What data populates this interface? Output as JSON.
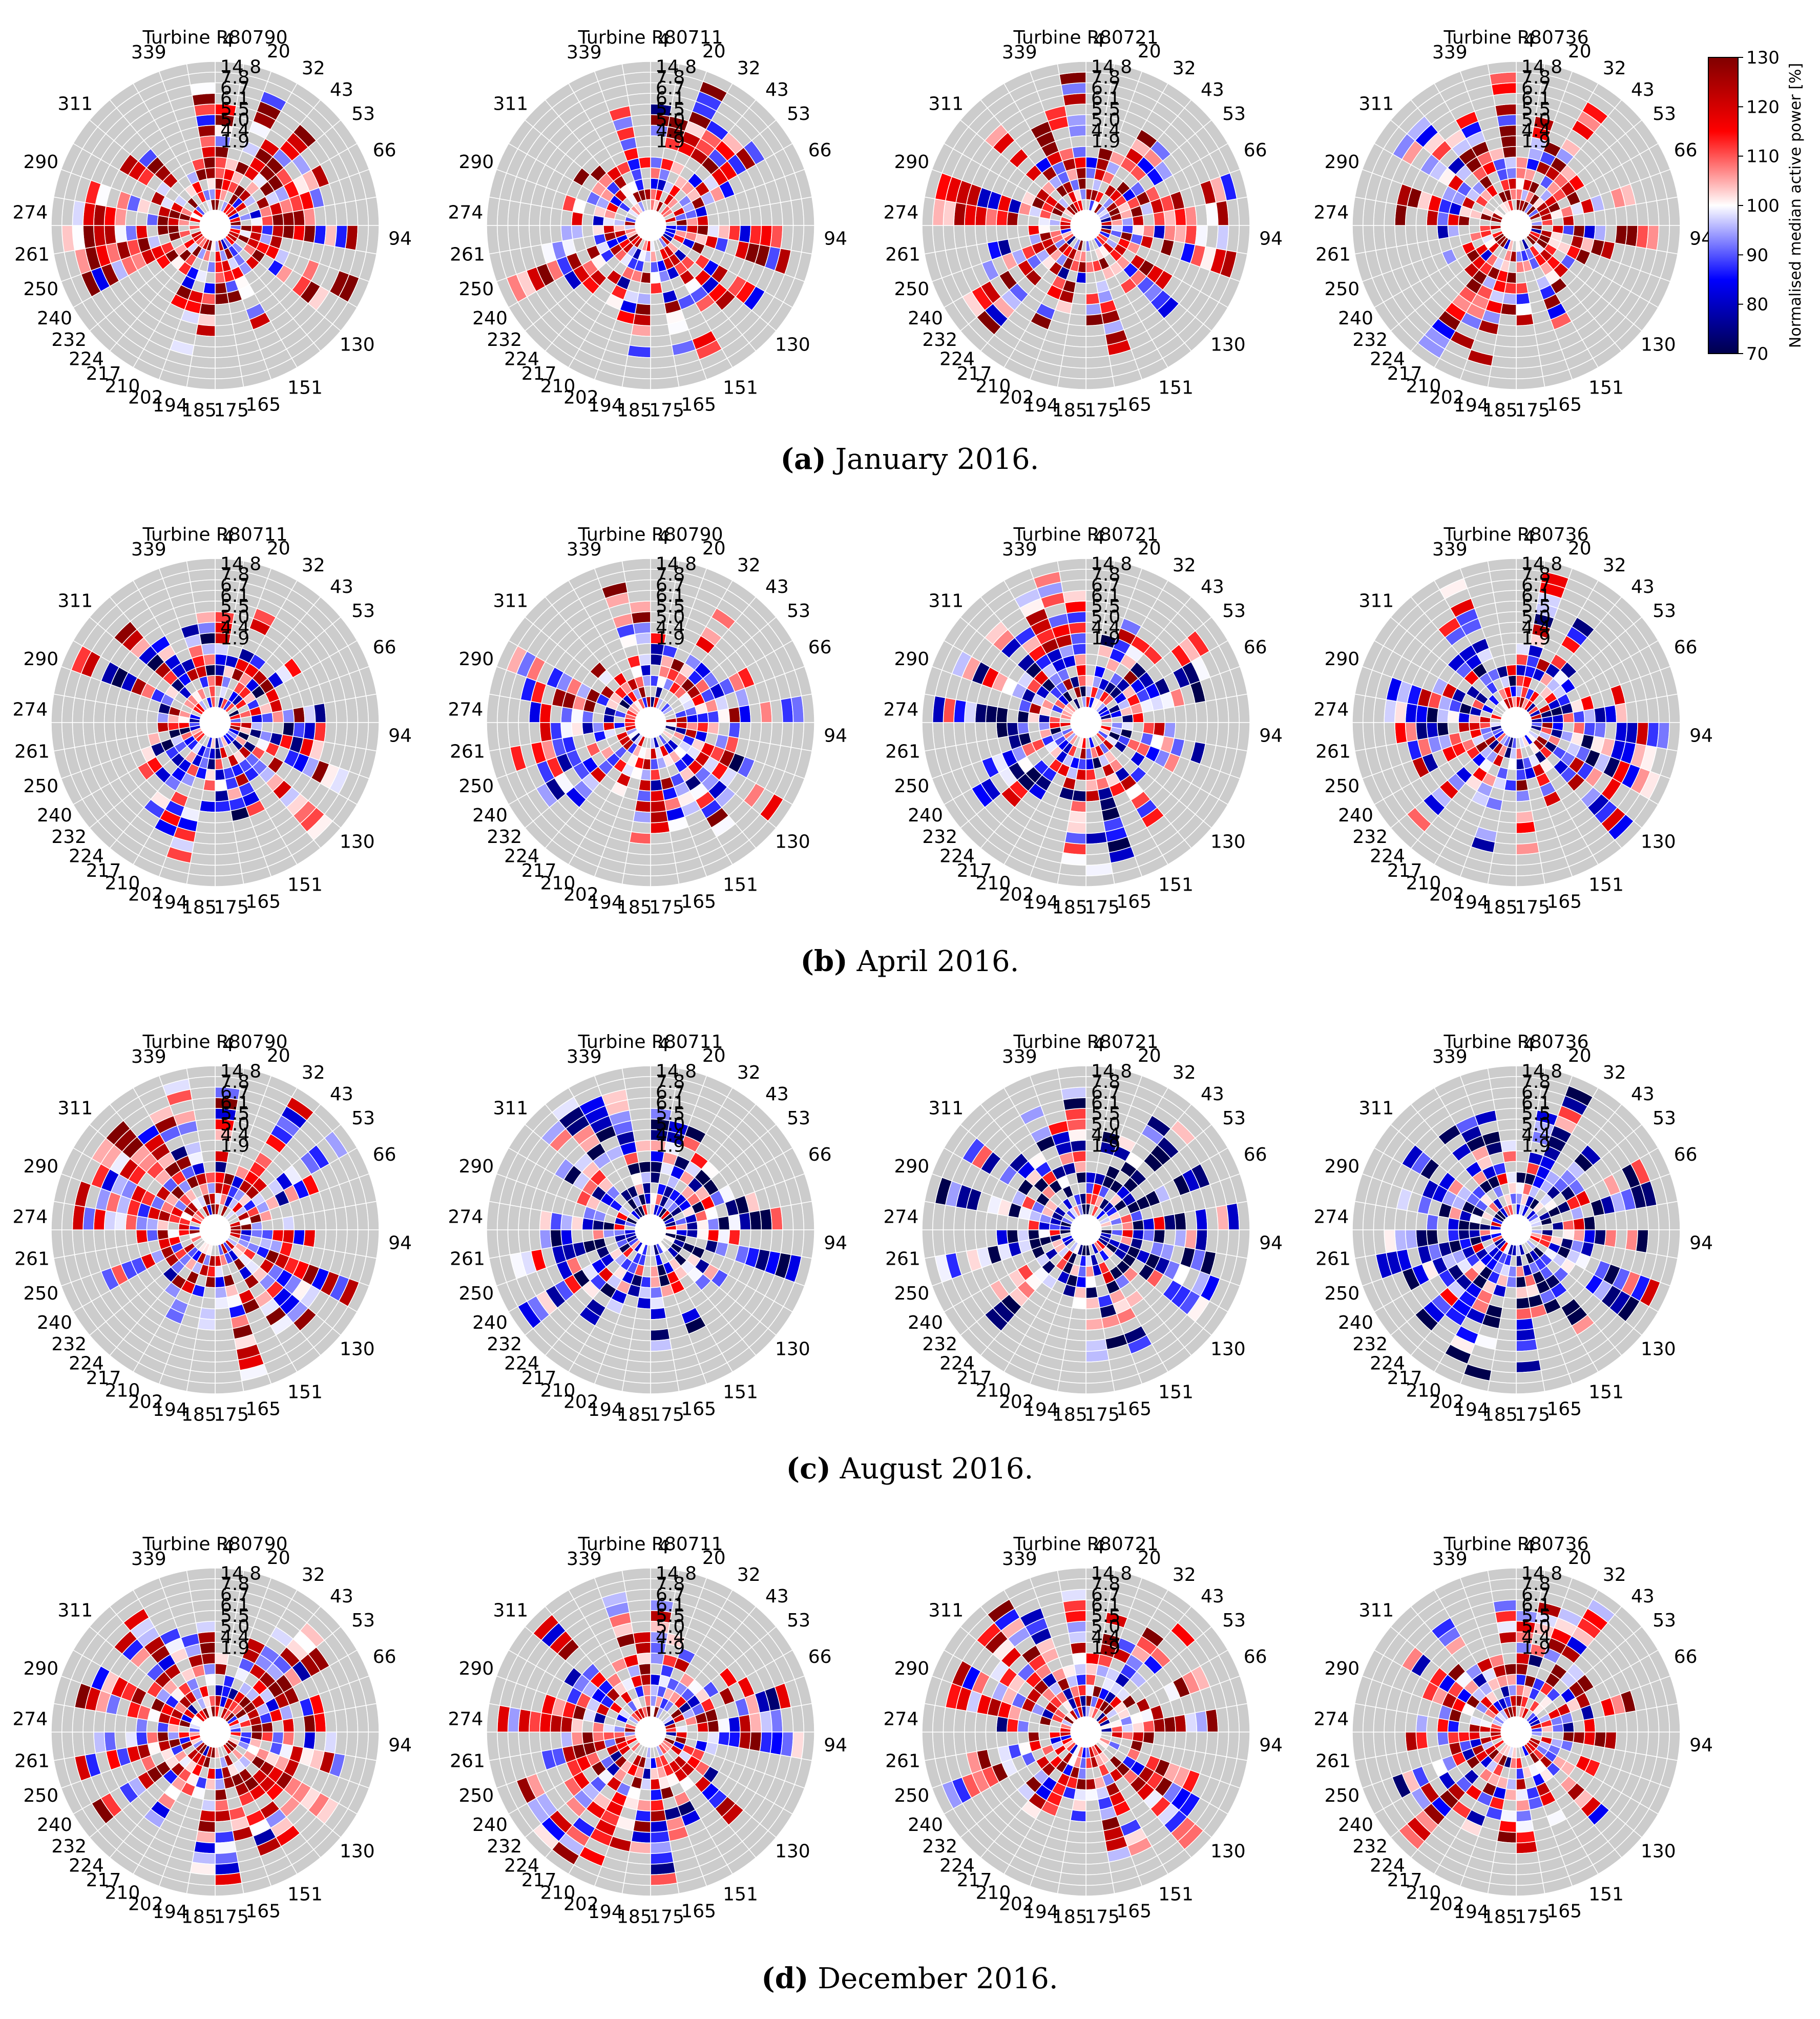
{
  "chart_data": {
    "type": "polar-heatmap",
    "description_units": "Normalised median active power [%] per wind-direction sector (deg) and wind-speed bin",
    "angular_tick_labels": [
      "4",
      "20",
      "32",
      "43",
      "53",
      "66",
      "94",
      "130",
      "151",
      "165",
      "175",
      "185",
      "194",
      "202",
      "210",
      "217",
      "224",
      "232",
      "240",
      "250",
      "261",
      "274",
      "290",
      "311",
      "339"
    ],
    "radial_tick_labels": [
      "14.8",
      "7.8",
      "6.7",
      "6.1",
      "5.5",
      "5.0",
      "4.4",
      "1.9"
    ],
    "colorbar": {
      "label": "Normalised median active power [%]",
      "range": [
        70,
        130
      ],
      "ticks": [
        "130",
        "120",
        "110",
        "100",
        "90",
        "80",
        "70"
      ],
      "colormap": "seismic"
    },
    "rows": [
      {
        "caption_label": "(a)",
        "caption_text": " January 2016.",
        "panels": [
          {
            "title": "Turbine R80790",
            "tendency": 112
          },
          {
            "title": "Turbine R80711",
            "tendency": 106
          },
          {
            "title": "Turbine R80721",
            "tendency": 108
          },
          {
            "title": "Turbine R80736",
            "tendency": 110
          }
        ]
      },
      {
        "caption_label": "(b)",
        "caption_text": " April 2016.",
        "panels": [
          {
            "title": "Turbine R80711",
            "tendency": 98
          },
          {
            "title": "Turbine R80790",
            "tendency": 102
          },
          {
            "title": "Turbine R80721",
            "tendency": 96
          },
          {
            "title": "Turbine R80736",
            "tendency": 99
          }
        ]
      },
      {
        "caption_label": "(c)",
        "caption_text": " August 2016.",
        "panels": [
          {
            "title": "Turbine R80790",
            "tendency": 106
          },
          {
            "title": "Turbine R80711",
            "tendency": 88
          },
          {
            "title": "Turbine R80721",
            "tendency": 87
          },
          {
            "title": "Turbine R80736",
            "tendency": 88
          }
        ]
      },
      {
        "caption_label": "(d)",
        "caption_text": " December 2016.",
        "panels": [
          {
            "title": "Turbine R80790",
            "tendency": 110
          },
          {
            "title": "Turbine R80711",
            "tendency": 106
          },
          {
            "title": "Turbine R80721",
            "tendency": 108
          },
          {
            "title": "Turbine R80736",
            "tendency": 106
          }
        ]
      }
    ]
  }
}
